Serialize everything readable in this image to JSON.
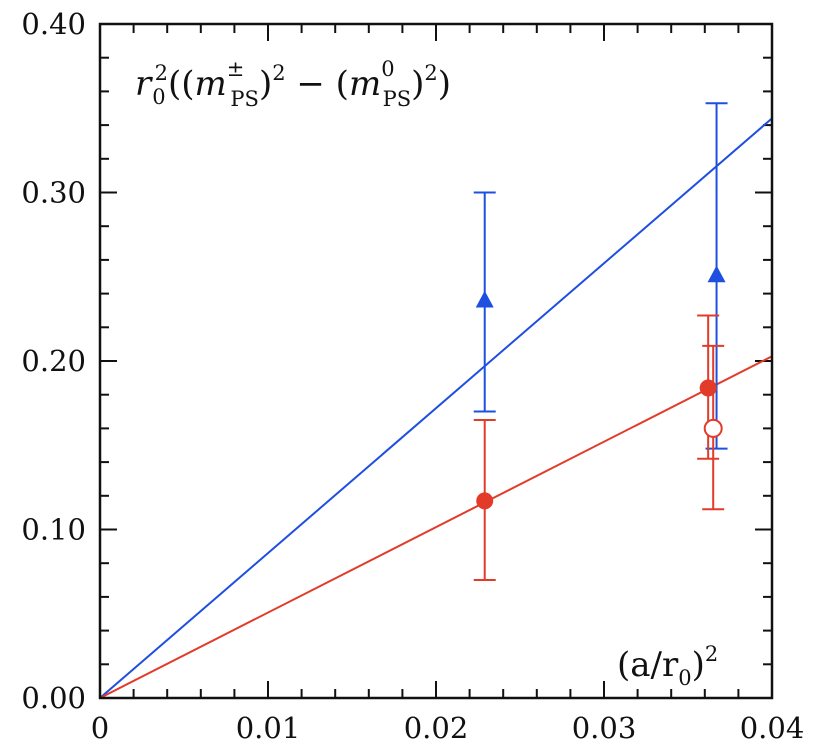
{
  "chart_data": {
    "type": "scatter",
    "title": "",
    "ylabel": {
      "r": "r",
      "r_sub": "0",
      "r_sup": "2",
      "open": "((",
      "m1": "m",
      "m1_sup": "±",
      "m1_sub": "PS",
      "close1": ")",
      "sq1": "2",
      "minus": " − (",
      "m2": "m",
      "m2_sup": "0",
      "m2_sub": "PS",
      "close2": ")",
      "sq2": "2",
      "end": ")"
    },
    "xlabel": {
      "open": "(a/r",
      "sub": "0",
      "close": ")",
      "sup": "2"
    },
    "xlim": [
      0,
      0.04
    ],
    "ylim": [
      0,
      0.4
    ],
    "x_ticks": [
      {
        "value": 0,
        "label": "0"
      },
      {
        "value": 0.01,
        "label": "0.01"
      },
      {
        "value": 0.02,
        "label": "0.02"
      },
      {
        "value": 0.03,
        "label": "0.03"
      },
      {
        "value": 0.04,
        "label": "0.04"
      }
    ],
    "y_ticks": [
      {
        "value": 0,
        "label": "0.00"
      },
      {
        "value": 0.1,
        "label": "0.10"
      },
      {
        "value": 0.2,
        "label": "0.20"
      },
      {
        "value": 0.3,
        "label": "0.30"
      },
      {
        "value": 0.4,
        "label": "0.40"
      }
    ],
    "x_minor_step": 0.002,
    "y_minor_step": 0.02,
    "series": [
      {
        "name": "blue",
        "color": "#1f4fe0",
        "marker": "triangle",
        "fit_slope": 8.6,
        "points": [
          {
            "x": 0.0229,
            "y": 0.236,
            "yerr_low": 0.17,
            "yerr_high": 0.3
          },
          {
            "x": 0.0367,
            "y": 0.251,
            "yerr_low": 0.148,
            "yerr_high": 0.353
          }
        ]
      },
      {
        "name": "red",
        "color": "#e23b2a",
        "marker": "circle",
        "fit_slope": 5.07,
        "points": [
          {
            "x": 0.0229,
            "y": 0.117,
            "yerr_low": 0.07,
            "yerr_high": 0.165
          },
          {
            "x": 0.0362,
            "y": 0.184,
            "yerr_low": 0.142,
            "yerr_high": 0.227
          }
        ]
      },
      {
        "name": "red-open",
        "color": "#e23b2a",
        "marker": "open-circle",
        "points": [
          {
            "x": 0.0365,
            "y": 0.16,
            "yerr_low": 0.112,
            "yerr_high": 0.209
          }
        ]
      }
    ]
  }
}
